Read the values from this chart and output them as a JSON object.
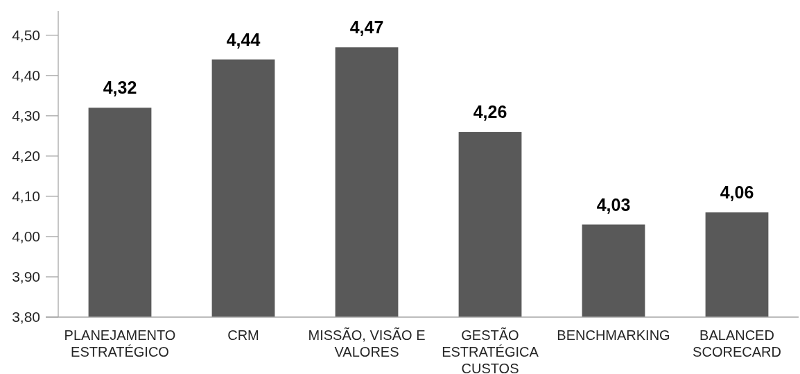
{
  "chart_data": {
    "type": "bar",
    "categories": [
      "PLANEJAMENTO ESTRATÉGICO",
      "CRM",
      "MISSÃO, VISÃO E VALORES",
      "GESTÃO ESTRATÉGICA CUSTOS",
      "BENCHMARKING",
      "BALANCED SCORECARD"
    ],
    "values": [
      4.32,
      4.44,
      4.47,
      4.26,
      4.03,
      4.06
    ],
    "value_labels": [
      "4,32",
      "4,44",
      "4,47",
      "4,26",
      "4,03",
      "4,06"
    ],
    "color": "#595959",
    "ylim": [
      3.8,
      4.56
    ],
    "yticks": [
      {
        "value": 3.8,
        "label": "3,80"
      },
      {
        "value": 3.9,
        "label": "3,90"
      },
      {
        "value": 4.0,
        "label": "4,00"
      },
      {
        "value": 4.1,
        "label": "4,10"
      },
      {
        "value": 4.2,
        "label": "4,20"
      },
      {
        "value": 4.3,
        "label": "4,30"
      },
      {
        "value": 4.4,
        "label": "4,40"
      },
      {
        "value": 4.5,
        "label": "4,50"
      }
    ]
  }
}
